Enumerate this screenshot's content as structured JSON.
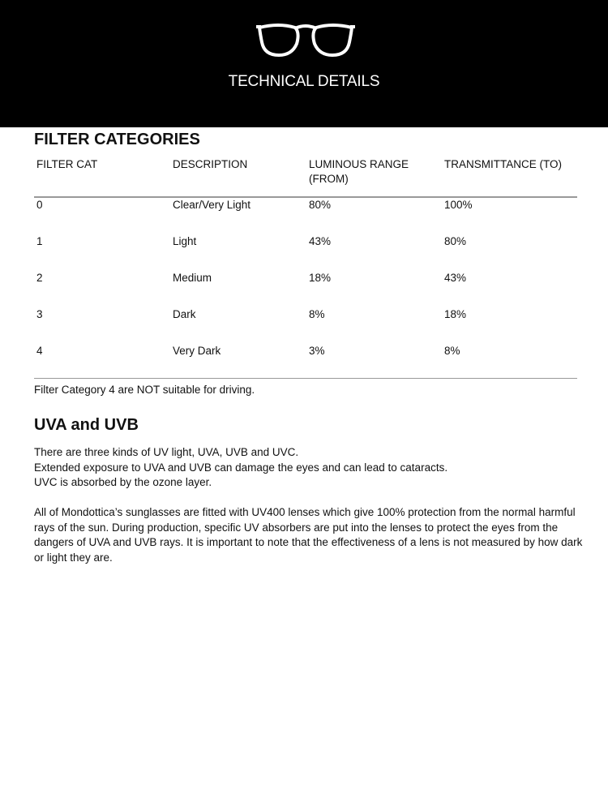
{
  "header": {
    "title": "TECHNICAL DETAILS",
    "logo_icon": "eyeglasses-icon"
  },
  "filter_section": {
    "heading": "FILTER CATEGORIES",
    "columns": [
      "FILTER CAT",
      "DESCRIPTION",
      "LUMINOUS RANGE (FROM)",
      "TRANSMITTANCE (TO)"
    ],
    "rows": [
      [
        "0",
        "Clear/Very Light",
        "80%",
        "100%"
      ],
      [
        "1",
        "Light",
        "43%",
        "80%"
      ],
      [
        "2",
        "Medium",
        "18%",
        "43%"
      ],
      [
        "3",
        "Dark",
        "8%",
        "18%"
      ],
      [
        "4",
        "Very Dark",
        "3%",
        "8%"
      ]
    ],
    "note": "Filter Category 4 are NOT suitable for driving."
  },
  "uv_section": {
    "heading": "UVA and UVB",
    "lines": [
      "There are three kinds of UV light, UVA, UVB and UVC.",
      "Extended exposure to UVA and UVB can damage the eyes and can lead to cataracts.",
      "UVC is absorbed by the ozone layer."
    ],
    "paragraph": "All of Mondottica’s sunglasses are fitted with UV400 lenses which give 100% protection from the normal harmful rays of the sun. During production, specific UV absorbers are put into the lenses to protect the eyes from the dangers of UVA and UVB rays. It is important to note that the effectiveness of a lens is not measured by how dark or light they are."
  }
}
